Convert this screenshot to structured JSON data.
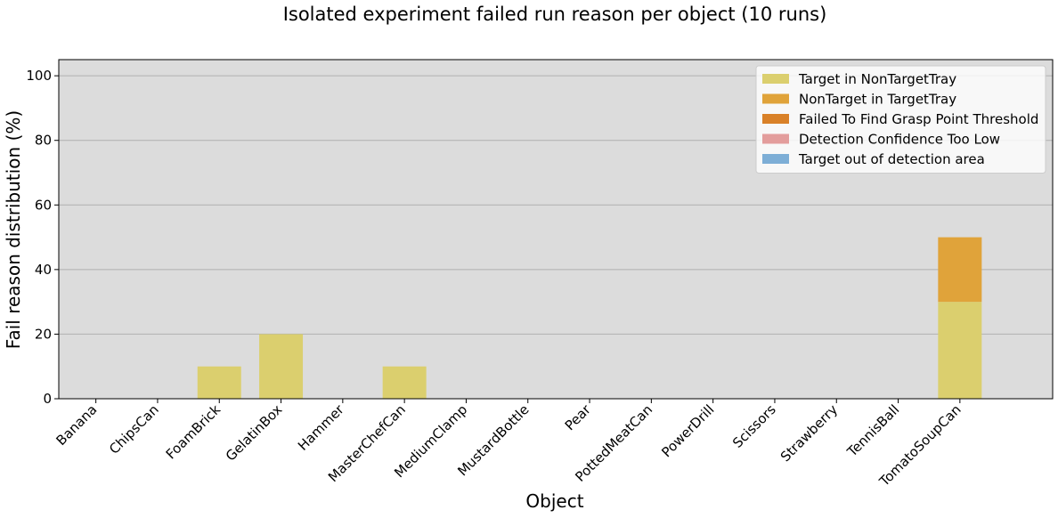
{
  "chart_data": {
    "type": "bar",
    "stacked": true,
    "title": "Isolated experiment failed run reason per object (10 runs)",
    "xlabel": "Object",
    "ylabel": "Fail reason distribution (%)",
    "ylim": [
      0,
      105
    ],
    "yticks": [
      0,
      20,
      40,
      60,
      80,
      100
    ],
    "grid": "y",
    "legend_position": "top-right",
    "categories": [
      "Banana",
      "ChipsCan",
      "FoamBrick",
      "GelatinBox",
      "Hammer",
      "MasterChefCan",
      "MediumClamp",
      "MustardBottle",
      "Pear",
      "PottedMeatCan",
      "PowerDrill",
      "Scissors",
      "Strawberry",
      "TennisBall",
      "TomatoSoupCan"
    ],
    "series": [
      {
        "name": "Target in NonTargetTray",
        "color": "#dbcf6e",
        "values": [
          0,
          0,
          10,
          20,
          0,
          10,
          0,
          0,
          0,
          0,
          0,
          0,
          0,
          0,
          30
        ]
      },
      {
        "name": "NonTarget in TargetTray",
        "color": "#e0a33a",
        "values": [
          0,
          0,
          0,
          0,
          0,
          0,
          0,
          0,
          0,
          0,
          0,
          0,
          0,
          0,
          20
        ]
      },
      {
        "name": "Failed To Find Grasp Point Threshold",
        "color": "#d98128",
        "values": [
          0,
          0,
          0,
          0,
          0,
          0,
          0,
          0,
          0,
          0,
          0,
          0,
          0,
          0,
          0
        ]
      },
      {
        "name": "Detection Confidence Too Low",
        "color": "#e39d9c",
        "values": [
          0,
          0,
          0,
          0,
          0,
          0,
          0,
          0,
          0,
          0,
          0,
          0,
          0,
          0,
          0
        ]
      },
      {
        "name": "Target out of detection area",
        "color": "#7daed6",
        "values": [
          0,
          0,
          0,
          0,
          0,
          0,
          0,
          0,
          0,
          0,
          0,
          0,
          0,
          0,
          0
        ]
      }
    ],
    "plot_background": "#dcdcdc",
    "grid_color": "#b0b0b0"
  }
}
